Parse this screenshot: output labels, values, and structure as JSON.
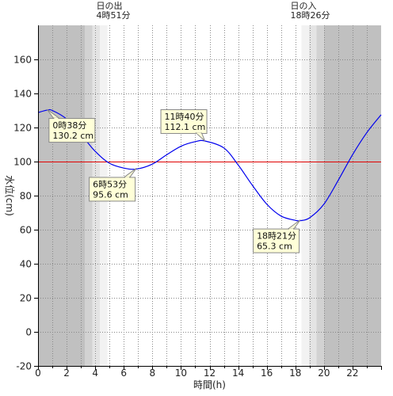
{
  "chart_data": {
    "type": "line",
    "xlabel": "時間(h)",
    "ylabel": "水位(cm)",
    "xlim": [
      0,
      24
    ],
    "ylim": [
      -20,
      180
    ],
    "x_ticks": [
      0,
      2,
      4,
      6,
      8,
      10,
      12,
      14,
      16,
      18,
      20,
      22
    ],
    "y_ticks": [
      -20,
      0,
      20,
      40,
      60,
      80,
      100,
      120,
      140,
      160
    ],
    "grid": true,
    "reference_line": {
      "y": 100,
      "color": "#e00000"
    },
    "series": [
      {
        "color": "#0000ee",
        "points": [
          [
            0,
            128.8
          ],
          [
            0.63,
            130.2
          ],
          [
            1,
            130.0
          ],
          [
            2,
            125.0
          ],
          [
            3,
            116.0
          ],
          [
            4,
            106.0
          ],
          [
            5,
            99.0
          ],
          [
            6,
            96.2
          ],
          [
            6.88,
            95.6
          ],
          [
            8,
            98.5
          ],
          [
            9,
            104.0
          ],
          [
            10,
            109.0
          ],
          [
            11,
            111.7
          ],
          [
            11.67,
            112.1
          ],
          [
            13,
            108.0
          ],
          [
            14,
            98.0
          ],
          [
            15,
            86.0
          ],
          [
            16,
            75.0
          ],
          [
            17,
            68.0
          ],
          [
            18,
            65.5
          ],
          [
            18.35,
            65.3
          ],
          [
            19,
            67.0
          ],
          [
            20,
            75.0
          ],
          [
            21,
            89.0
          ],
          [
            22,
            104.0
          ],
          [
            23,
            117.0
          ],
          [
            24,
            127.5
          ]
        ]
      }
    ],
    "sun": {
      "sunrise": {
        "title": "日の出",
        "time": "4時51分",
        "x": 4.85
      },
      "sunset": {
        "title": "日の入",
        "time": "18時26分",
        "x": 18.43
      }
    },
    "shading": {
      "night_color": "#c0c0c0",
      "twilight_colors": [
        "#d2d2d2",
        "#e4e4e4",
        "#f2f2f2"
      ],
      "day_color": "#ffffff",
      "bands": [
        {
          "from": 0,
          "to": 3.27,
          "level": "night"
        },
        {
          "from": 3.27,
          "to": 3.8,
          "level": "t1"
        },
        {
          "from": 3.8,
          "to": 4.33,
          "level": "t2"
        },
        {
          "from": 4.33,
          "to": 4.85,
          "level": "t3"
        },
        {
          "from": 18.43,
          "to": 18.95,
          "level": "t3"
        },
        {
          "from": 18.95,
          "to": 19.48,
          "level": "t2"
        },
        {
          "from": 19.48,
          "to": 20.0,
          "level": "t1"
        },
        {
          "from": 20.0,
          "to": 24,
          "level": "night"
        }
      ]
    },
    "annotations": [
      {
        "time": "0時38分",
        "value": "130.2 cm",
        "x": 0.63,
        "y": 130.2,
        "position": "below-right"
      },
      {
        "time": "6時53分",
        "value": "95.6 cm",
        "x": 6.88,
        "y": 95.6,
        "position": "below-left"
      },
      {
        "time": "11時40分",
        "value": "112.1 cm",
        "x": 11.67,
        "y": 112.1,
        "position": "above-left"
      },
      {
        "time": "18時21分",
        "value": "65.3 cm",
        "x": 18.35,
        "y": 65.3,
        "position": "below-left"
      }
    ]
  }
}
